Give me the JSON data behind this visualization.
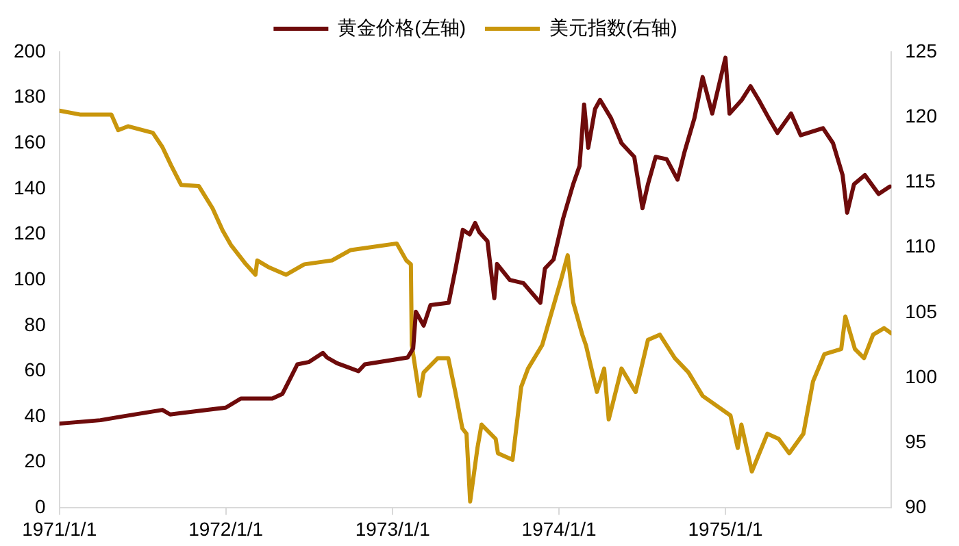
{
  "chart_data": {
    "type": "line",
    "legend": "top",
    "grid": false,
    "marker": "none",
    "line_style": "solid",
    "xlim": [
      "1971-01-01",
      "1975-12-31"
    ],
    "xticks": [
      {
        "value": "1971-01-01",
        "label": "1971/1/1"
      },
      {
        "value": "1972-01-01",
        "label": "1972/1/1"
      },
      {
        "value": "1973-01-01",
        "label": "1973/1/1"
      },
      {
        "value": "1974-01-01",
        "label": "1974/1/1"
      },
      {
        "value": "1975-01-01",
        "label": "1975/1/1"
      }
    ],
    "ylim": [
      0,
      200
    ],
    "yticks": [
      0,
      20,
      40,
      60,
      80,
      100,
      120,
      140,
      160,
      180,
      200
    ],
    "y2lim": [
      90,
      125
    ],
    "y2ticks": [
      90,
      95,
      100,
      105,
      110,
      115,
      120,
      125
    ],
    "series": [
      {
        "name": "黄金价格(左轴)",
        "color": "#6e0b0b",
        "x": [
          "1971-01-01",
          "1971-04-01",
          "1971-05-15",
          "1971-08-15",
          "1971-09-01",
          "1971-12-10",
          "1972-01-01",
          "1972-02-03",
          "1972-04-12",
          "1972-05-04",
          "1972-05-22",
          "1972-06-06",
          "1972-07-01",
          "1972-08-01",
          "1972-08-10",
          "1972-09-01",
          "1972-10-18",
          "1972-11-01",
          "1973-02-03",
          "1973-02-15",
          "1973-02-21",
          "1973-03-10",
          "1973-03-25",
          "1973-05-04",
          "1973-05-19",
          "1973-06-04",
          "1973-06-19",
          "1973-07-01",
          "1973-07-10",
          "1973-07-28",
          "1973-08-12",
          "1973-08-18",
          "1973-09-15",
          "1973-10-15",
          "1973-11-21",
          "1973-12-01",
          "1973-12-20",
          "1974-01-10",
          "1974-02-01",
          "1974-02-15",
          "1974-02-25",
          "1974-03-06",
          "1974-03-21",
          "1974-04-01",
          "1974-04-25",
          "1974-05-18",
          "1974-06-15",
          "1974-07-03",
          "1974-07-15",
          "1974-08-01",
          "1974-08-25",
          "1974-09-18",
          "1974-10-03",
          "1974-10-25",
          "1974-11-12",
          "1974-12-03",
          "1975-01-01",
          "1975-01-10",
          "1975-02-06",
          "1975-02-25",
          "1975-03-15",
          "1975-04-06",
          "1975-04-25",
          "1975-05-25",
          "1975-06-15",
          "1975-08-03",
          "1975-08-25",
          "1975-09-15",
          "1975-09-25",
          "1975-10-10",
          "1975-11-03",
          "1975-12-03",
          "1975-12-28"
        ],
        "values": [
          37,
          38.5,
          40,
          43,
          41,
          43.5,
          44,
          48,
          48,
          50,
          57,
          63,
          64,
          68,
          66,
          63.5,
          60,
          63,
          66,
          70,
          86,
          80,
          89,
          90,
          105,
          122,
          120,
          125,
          121,
          117,
          92,
          107,
          100,
          98.6,
          90,
          105,
          109,
          127,
          142,
          150,
          177,
          158,
          175,
          179,
          171,
          160,
          154,
          131.5,
          142,
          154,
          153,
          144,
          156,
          171,
          189,
          173,
          197.5,
          173,
          179,
          185,
          179,
          171,
          164.5,
          173,
          163.5,
          166.6,
          160,
          146,
          129.5,
          142,
          146,
          137.7,
          141
        ]
      },
      {
        "name": "美元指数(右轴)",
        "color": "#c9960c",
        "axis": "y2",
        "x": [
          "1971-01-01",
          "1971-02-15",
          "1971-04-25",
          "1971-05-10",
          "1971-06-01",
          "1971-07-25",
          "1971-08-15",
          "1971-09-03",
          "1971-09-25",
          "1971-11-03",
          "1971-12-03",
          "1971-12-25",
          "1972-01-12",
          "1972-02-12",
          "1972-03-06",
          "1972-03-10",
          "1972-04-03",
          "1972-05-12",
          "1972-06-21",
          "1972-08-21",
          "1972-10-01",
          "1973-01-10",
          "1973-01-31",
          "1973-02-10",
          "1973-02-12",
          "1973-03-01",
          "1973-03-10",
          "1973-04-10",
          "1973-05-03",
          "1973-05-18",
          "1973-06-03",
          "1973-06-12",
          "1973-06-20",
          "1973-07-06",
          "1973-07-15",
          "1973-08-15",
          "1973-08-20",
          "1973-09-21",
          "1973-10-10",
          "1973-10-25",
          "1973-11-25",
          "1974-01-06",
          "1974-01-20",
          "1974-02-01",
          "1974-02-21",
          "1974-03-01",
          "1974-03-25",
          "1974-04-10",
          "1974-04-20",
          "1974-05-18",
          "1974-06-18",
          "1974-07-15",
          "1974-08-10",
          "1974-09-12",
          "1974-10-12",
          "1974-11-12",
          "1975-01-12",
          "1975-01-28",
          "1975-02-05",
          "1975-02-28",
          "1975-04-03",
          "1975-04-28",
          "1975-05-21",
          "1975-06-21",
          "1975-07-12",
          "1975-08-06",
          "1975-09-12",
          "1975-09-21",
          "1975-10-12",
          "1975-11-01",
          "1975-11-21",
          "1975-12-15",
          "1975-12-31"
        ],
        "values": [
          120.5,
          120.2,
          120.2,
          119,
          119.3,
          118.8,
          117.7,
          116.3,
          114.8,
          114.7,
          113,
          111.3,
          110.2,
          108.8,
          107.9,
          109,
          108.5,
          107.9,
          108.7,
          109,
          109.8,
          110.3,
          109,
          108.7,
          102.5,
          98.6,
          100.4,
          101.5,
          101.5,
          99,
          96.1,
          95.7,
          90.5,
          94.6,
          96.4,
          95.3,
          94.2,
          93.7,
          99.3,
          100.7,
          102.5,
          107.6,
          109.4,
          105.8,
          103.3,
          102.5,
          98.9,
          100.7,
          96.8,
          100.7,
          98.9,
          102.9,
          103.3,
          101.5,
          100.4,
          98.6,
          97.1,
          94.6,
          96.4,
          92.8,
          95.7,
          95.3,
          94.2,
          95.7,
          99.7,
          101.8,
          102.2,
          104.7,
          102.2,
          101.5,
          103.3,
          103.8,
          103.4
        ]
      }
    ]
  }
}
